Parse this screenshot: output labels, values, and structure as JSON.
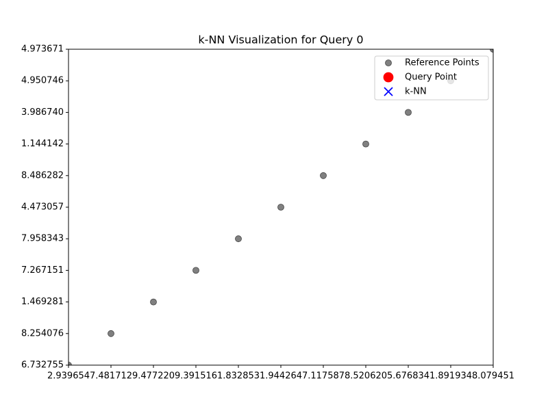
{
  "chart_data": {
    "type": "scatter",
    "title": "k-NN Visualization for Query 0",
    "x_categories": [
      "2.939654",
      "7.481712",
      "9.477220",
      "9.391516",
      "1.832853",
      "1.944264",
      "7.117587",
      "8.520620",
      "5.676834",
      "1.891934",
      "8.079451"
    ],
    "y_categories": [
      "6.732755",
      "8.254076",
      "1.469281",
      "7.267151",
      "7.958343",
      "4.473057",
      "8.486282",
      "1.144142",
      "3.986740",
      "4.950746",
      "4.973671"
    ],
    "series": [
      {
        "name": "Reference Points",
        "color": "#808080",
        "marker": "circle",
        "x": [
          "2.939654",
          "7.481712",
          "9.477220",
          "9.391516",
          "1.832853",
          "1.944264",
          "7.117587",
          "8.520620",
          "5.676834",
          "1.891934",
          "8.079451"
        ],
        "y": [
          "6.732755",
          "8.254076",
          "1.469281",
          "7.267151",
          "7.958343",
          "4.473057",
          "8.486282",
          "1.144142",
          "3.986740",
          "4.950746",
          "4.973671"
        ]
      },
      {
        "name": "Query Point",
        "color": "#ff0000",
        "marker": "circle",
        "x": [],
        "y": []
      },
      {
        "name": "k-NN",
        "color": "#0000ff",
        "marker": "x",
        "x": [],
        "y": []
      }
    ],
    "legend": "upper right"
  }
}
